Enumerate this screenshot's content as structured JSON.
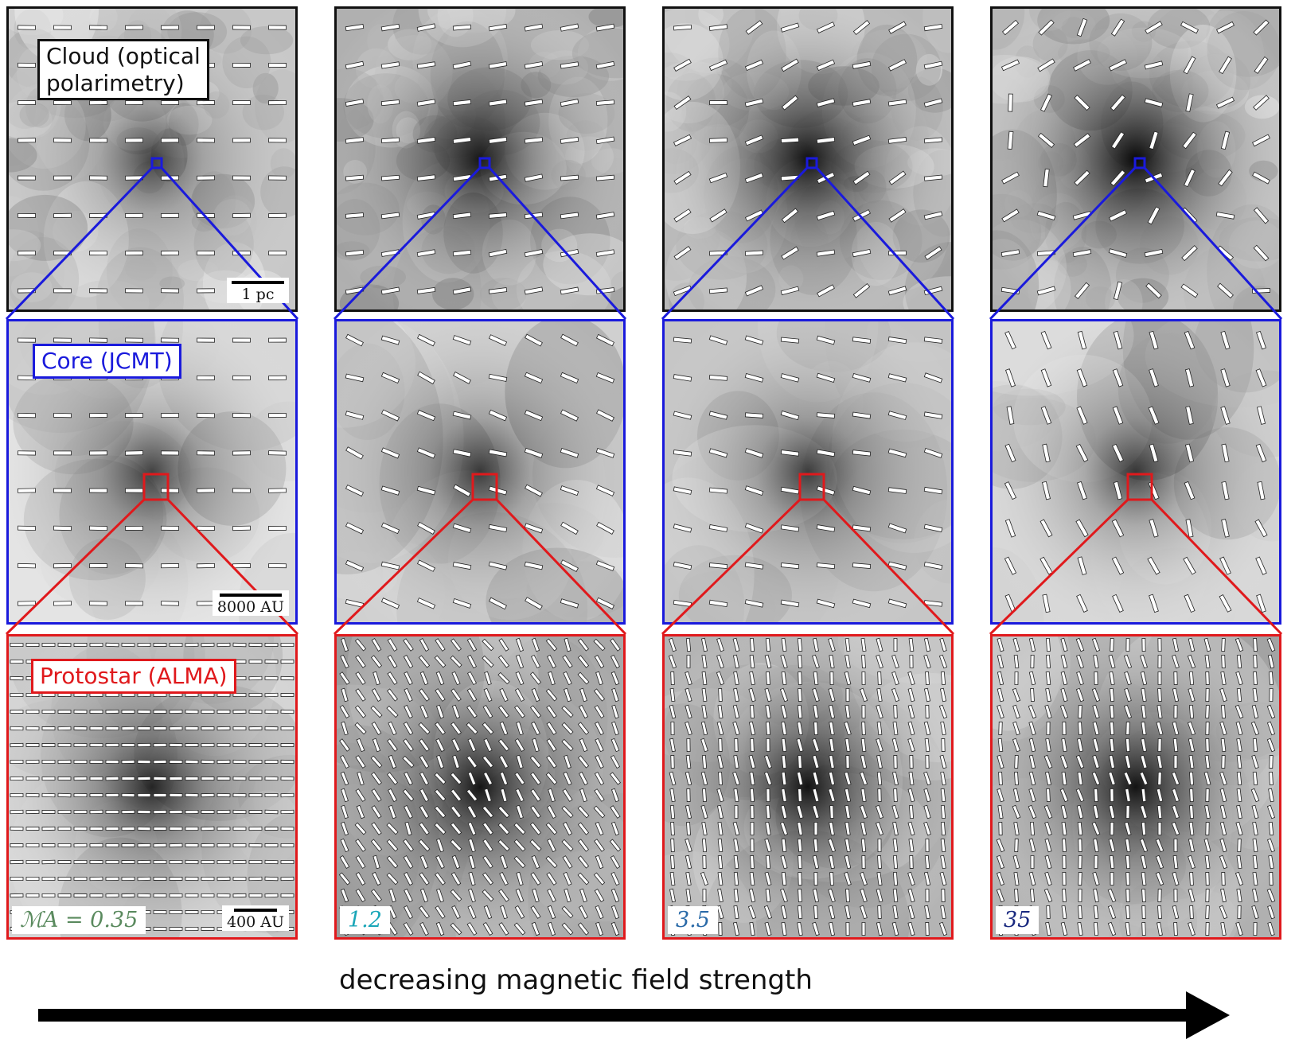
{
  "labels": {
    "cloud": "Cloud (optical\npolarimetry)",
    "core": "Core (JCMT)",
    "protostar": "Protostar (ALMA)"
  },
  "scale_bars": {
    "cloud": "1 pc",
    "core": "8000 AU",
    "protostar": "400 AU"
  },
  "mach_alfven": [
    {
      "text": "ℳA = 0.35",
      "color": "#5a8a5e"
    },
    {
      "text": "1.2",
      "color": "#1aa6b8"
    },
    {
      "text": "3.5",
      "color": "#2a6aa8"
    },
    {
      "text": "35",
      "color": "#1a2a80"
    }
  ],
  "arrow_caption": "decreasing magnetic field strength",
  "colors": {
    "cloud_frame": "#111111",
    "core_frame": "#1a1adc",
    "protostar_frame": "#e0191c"
  },
  "icons": [
    "arrow-right-icon",
    "polarization-vector-icon"
  ]
}
